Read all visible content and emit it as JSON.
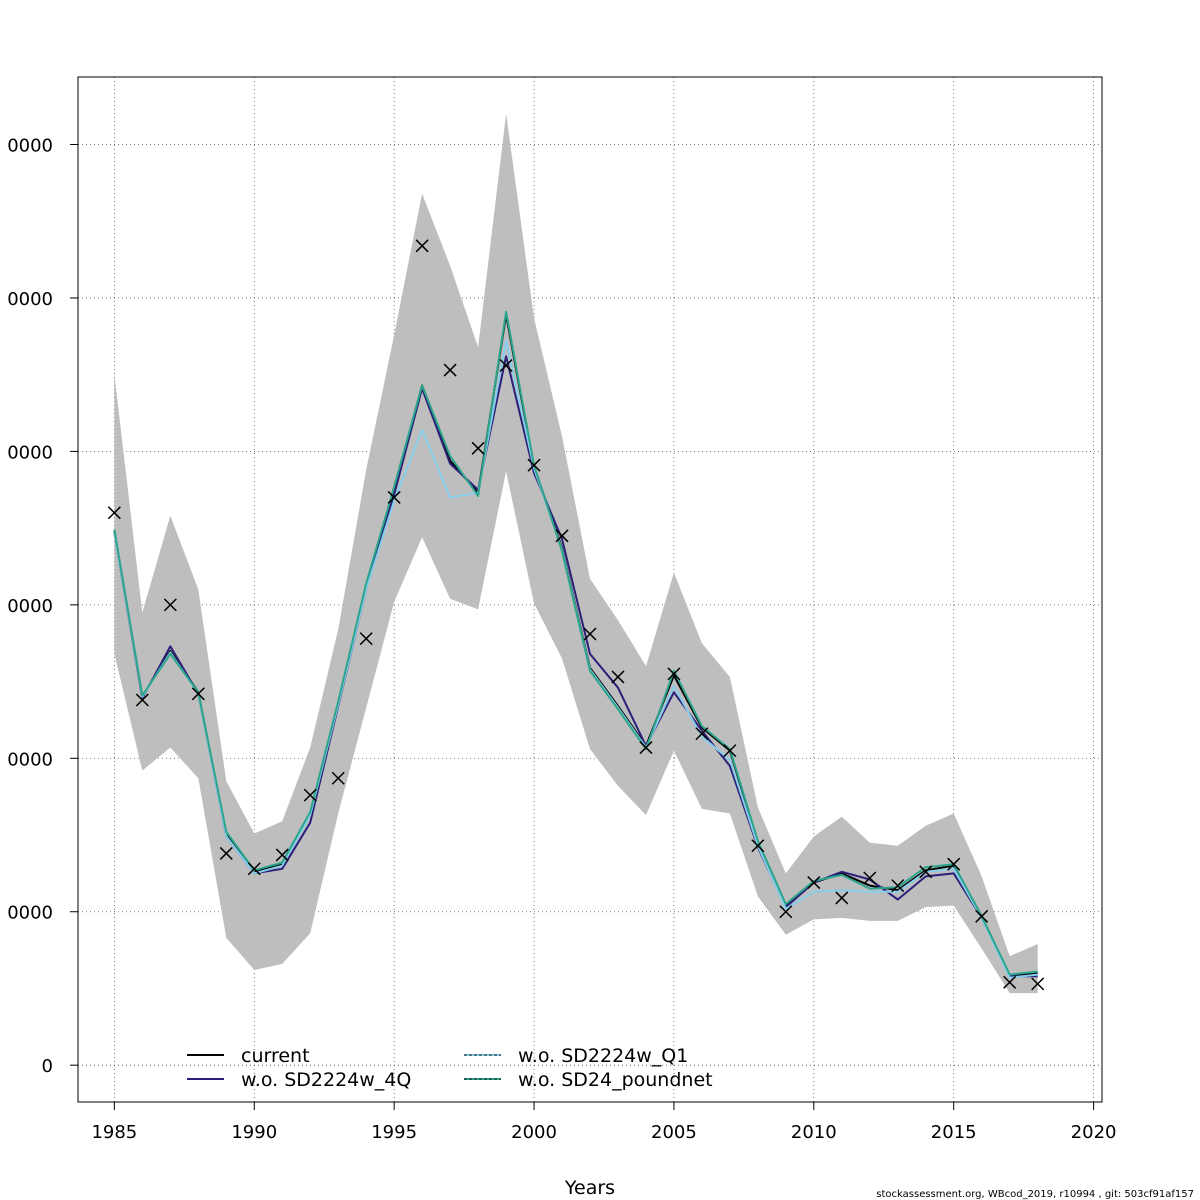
{
  "chart_data": {
    "type": "line",
    "xlabel": "Years",
    "ylabel": "",
    "xlim": [
      1983.7,
      2020.3
    ],
    "ylim": [
      -2400,
      64400
    ],
    "x_ticks": [
      1985,
      1990,
      1995,
      2000,
      2005,
      2010,
      2015,
      2020
    ],
    "y_ticks": [
      0,
      10000,
      20000,
      30000,
      40000,
      50000,
      60000
    ],
    "y_tick_labels": [
      "0",
      "0000",
      "0000",
      "0000",
      "0000",
      "0000",
      "0000"
    ],
    "grid": true,
    "legend_position": "bottom-left",
    "years": [
      1985,
      1986,
      1987,
      1988,
      1989,
      1990,
      1991,
      1992,
      1993,
      1994,
      1995,
      1996,
      1997,
      1998,
      1999,
      2000,
      2001,
      2002,
      2003,
      2004,
      2005,
      2006,
      2007,
      2008,
      2009,
      2010,
      2011,
      2012,
      2013,
      2014,
      2015,
      2016,
      2017,
      2018
    ],
    "band": {
      "color": "#bebebe",
      "upper": [
        45000,
        29500,
        35800,
        31000,
        18500,
        15100,
        15900,
        20700,
        28400,
        38800,
        47600,
        56800,
        52100,
        46800,
        62000,
        48700,
        41000,
        31700,
        29000,
        26000,
        32100,
        27500,
        25300,
        16800,
        12500,
        14900,
        16200,
        14500,
        14300,
        15600,
        16400,
        12300,
        7100,
        7900
      ],
      "lower": [
        26800,
        19200,
        20700,
        18700,
        8300,
        6200,
        6600,
        8600,
        16400,
        23300,
        30200,
        34400,
        30400,
        29700,
        38700,
        30100,
        26500,
        20600,
        18200,
        16300,
        20500,
        16700,
        16400,
        11000,
        8500,
        9500,
        9600,
        9400,
        9400,
        10300,
        10400,
        7600,
        4700,
        4700
      ]
    },
    "series": [
      {
        "name": "current",
        "color": "#000000",
        "dash": "",
        "values": [
          34800,
          24000,
          27000,
          24300,
          15000,
          12600,
          13100,
          16400,
          23600,
          31300,
          37500,
          44300,
          39400,
          37300,
          48900,
          39000,
          33700,
          25900,
          23400,
          20800,
          25400,
          22000,
          20500,
          14500,
          10400,
          11900,
          12500,
          11700,
          11400,
          12700,
          13000,
          9700,
          5800,
          6000
        ]
      },
      {
        "name": "w.o. SD2224w_4Q",
        "color": "#2b1f7a",
        "dash": "",
        "values": [
          34700,
          23900,
          27300,
          24200,
          14900,
          12500,
          12800,
          15800,
          23400,
          31000,
          37200,
          44100,
          39200,
          37500,
          46200,
          38600,
          34300,
          26800,
          24600,
          20800,
          24300,
          21800,
          19500,
          14200,
          10300,
          11900,
          12600,
          12100,
          10800,
          12300,
          12500,
          9600,
          5800,
          5800
        ]
      },
      {
        "name": "w.o. SD2224w_Q1",
        "color": "#87ceeb",
        "dash": "3,2",
        "values": [
          34700,
          24000,
          26900,
          24200,
          14900,
          12500,
          13000,
          16300,
          23500,
          31000,
          36800,
          41400,
          37000,
          37300,
          47200,
          38900,
          33600,
          25800,
          23300,
          20700,
          24700,
          21400,
          19900,
          14300,
          10200,
          11300,
          11400,
          11300,
          11300,
          12600,
          12800,
          9600,
          5700,
          5900
        ]
      },
      {
        "name": "w.o. SD24_poundnet",
        "color": "#2ca58d",
        "dash": "3,2",
        "values": [
          34900,
          24100,
          26800,
          24300,
          15200,
          12700,
          13200,
          16500,
          23700,
          31400,
          37700,
          44300,
          39700,
          37100,
          49100,
          39100,
          33500,
          25700,
          23200,
          20600,
          25700,
          22100,
          20600,
          14600,
          10500,
          12000,
          12400,
          11500,
          11600,
          12900,
          13100,
          9700,
          5900,
          6100
        ]
      }
    ],
    "observations": {
      "marker": "x",
      "color": "#000000",
      "years": [
        1985,
        1986,
        1987,
        1988,
        1989,
        1990,
        1991,
        1992,
        1993,
        1994,
        1995,
        1996,
        1997,
        1998,
        1999,
        2000,
        2001,
        2002,
        2003,
        2004,
        2005,
        2006,
        2007,
        2008,
        2009,
        2010,
        2011,
        2012,
        2013,
        2014,
        2015,
        2016,
        2017,
        2018
      ],
      "values": [
        36000,
        23800,
        30000,
        24200,
        13800,
        12800,
        13700,
        17600,
        18700,
        27800,
        37000,
        53400,
        45300,
        40200,
        45600,
        39100,
        34500,
        28100,
        25300,
        20700,
        25500,
        21600,
        20500,
        14300,
        10000,
        11900,
        10900,
        12200,
        11700,
        12600,
        13100,
        9700,
        5400,
        5300
      ]
    },
    "legend": {
      "entries_left": [
        "current",
        "w.o. SD2224w_4Q"
      ],
      "entries_right": [
        "w.o. SD2224w_Q1",
        "w.o. SD24_poundnet"
      ]
    }
  },
  "credit": "stockassessment.org, WBcod_2019, r10994 , git: 503cf91af157"
}
